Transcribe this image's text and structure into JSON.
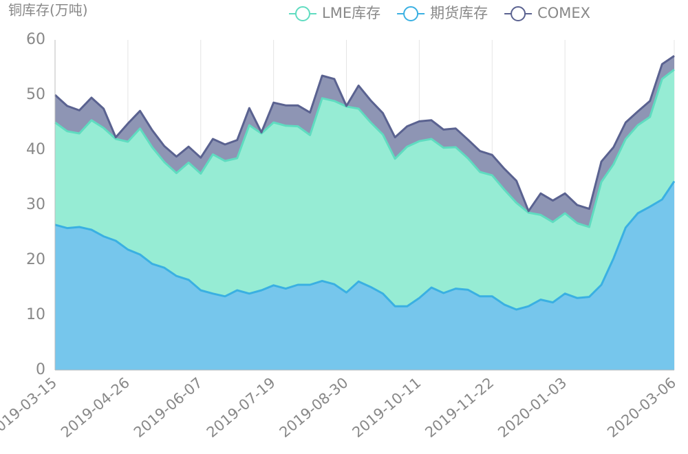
{
  "chart_data": {
    "type": "stacked_area",
    "title": "铜库存(万吨)",
    "categories": [
      "2019-03-15",
      null,
      null,
      null,
      null,
      null,
      "2019-04-26",
      null,
      null,
      null,
      null,
      null,
      "2019-06-07",
      null,
      null,
      null,
      null,
      null,
      "2019-07-19",
      null,
      null,
      null,
      null,
      null,
      "2019-08-30",
      null,
      null,
      null,
      null,
      null,
      "2019-10-11",
      null,
      null,
      null,
      null,
      null,
      "2019-11-22",
      null,
      null,
      null,
      null,
      null,
      "2020-01-03",
      null,
      null,
      null,
      null,
      null,
      null,
      null,
      null,
      "2020-03-06"
    ],
    "series": [
      {
        "name": "LME库存",
        "color": "#5fdcc0",
        "fill": "#96ecd4",
        "values": [
          18.6,
          17.6,
          17.0,
          19.9,
          19.7,
          18.5,
          19.6,
          22.9,
          21.2,
          19.2,
          18.7,
          21.3,
          21.2,
          25.3,
          24.6,
          24.0,
          30.6,
          28.5,
          29.6,
          29.6,
          28.8,
          27.2,
          33.2,
          33.3,
          33.8,
          31.4,
          29.9,
          28.9,
          26.8,
          29.0,
          28.5,
          27.0,
          26.4,
          25.7,
          23.9,
          22.6,
          22.0,
          20.9,
          19.4,
          17.0,
          15.4,
          14.6,
          14.6,
          13.6,
          12.7,
          18.7,
          17.1,
          16.1,
          16.0,
          16.3,
          21.9,
          20.3
        ]
      },
      {
        "name": "期货库存",
        "color": "#3ab0e2",
        "fill": "#76c6ec",
        "values": [
          26.4,
          25.8,
          26.0,
          25.5,
          24.3,
          23.5,
          21.9,
          21.0,
          19.3,
          18.6,
          17.1,
          16.4,
          14.5,
          13.9,
          13.4,
          14.5,
          13.9,
          14.5,
          15.4,
          14.8,
          15.5,
          15.5,
          16.2,
          15.6,
          14.1,
          16.1,
          15.1,
          13.9,
          11.6,
          11.6,
          13.1,
          15.0,
          14.0,
          14.8,
          14.6,
          13.4,
          13.4,
          11.9,
          11.0,
          11.6,
          12.8,
          12.3,
          13.9,
          13.1,
          13.3,
          15.5,
          20.3,
          25.9,
          28.5,
          29.7,
          31.0,
          34.3
        ]
      },
      {
        "name": "COMEX",
        "color": "#5a6290",
        "fill": "#8e95b4",
        "values": [
          5.0,
          4.6,
          4.2,
          4.1,
          3.5,
          0.3,
          3.3,
          3.2,
          3.1,
          2.9,
          3.0,
          2.9,
          2.9,
          2.8,
          3.0,
          3.3,
          3.1,
          0.2,
          3.6,
          3.7,
          3.8,
          4.1,
          4.1,
          4.0,
          0.1,
          4.2,
          4.0,
          3.9,
          3.9,
          3.7,
          3.6,
          3.4,
          3.3,
          3.4,
          3.4,
          3.8,
          3.7,
          3.8,
          4.0,
          0.3,
          3.9,
          3.9,
          3.6,
          3.3,
          3.3,
          3.7,
          3.1,
          3.0,
          2.5,
          2.9,
          2.7,
          2.5
        ]
      }
    ],
    "ylim": [
      0,
      60
    ],
    "yticks": [
      0,
      10,
      20,
      30,
      40,
      50,
      60
    ],
    "grid": true,
    "legend": "top-right"
  }
}
